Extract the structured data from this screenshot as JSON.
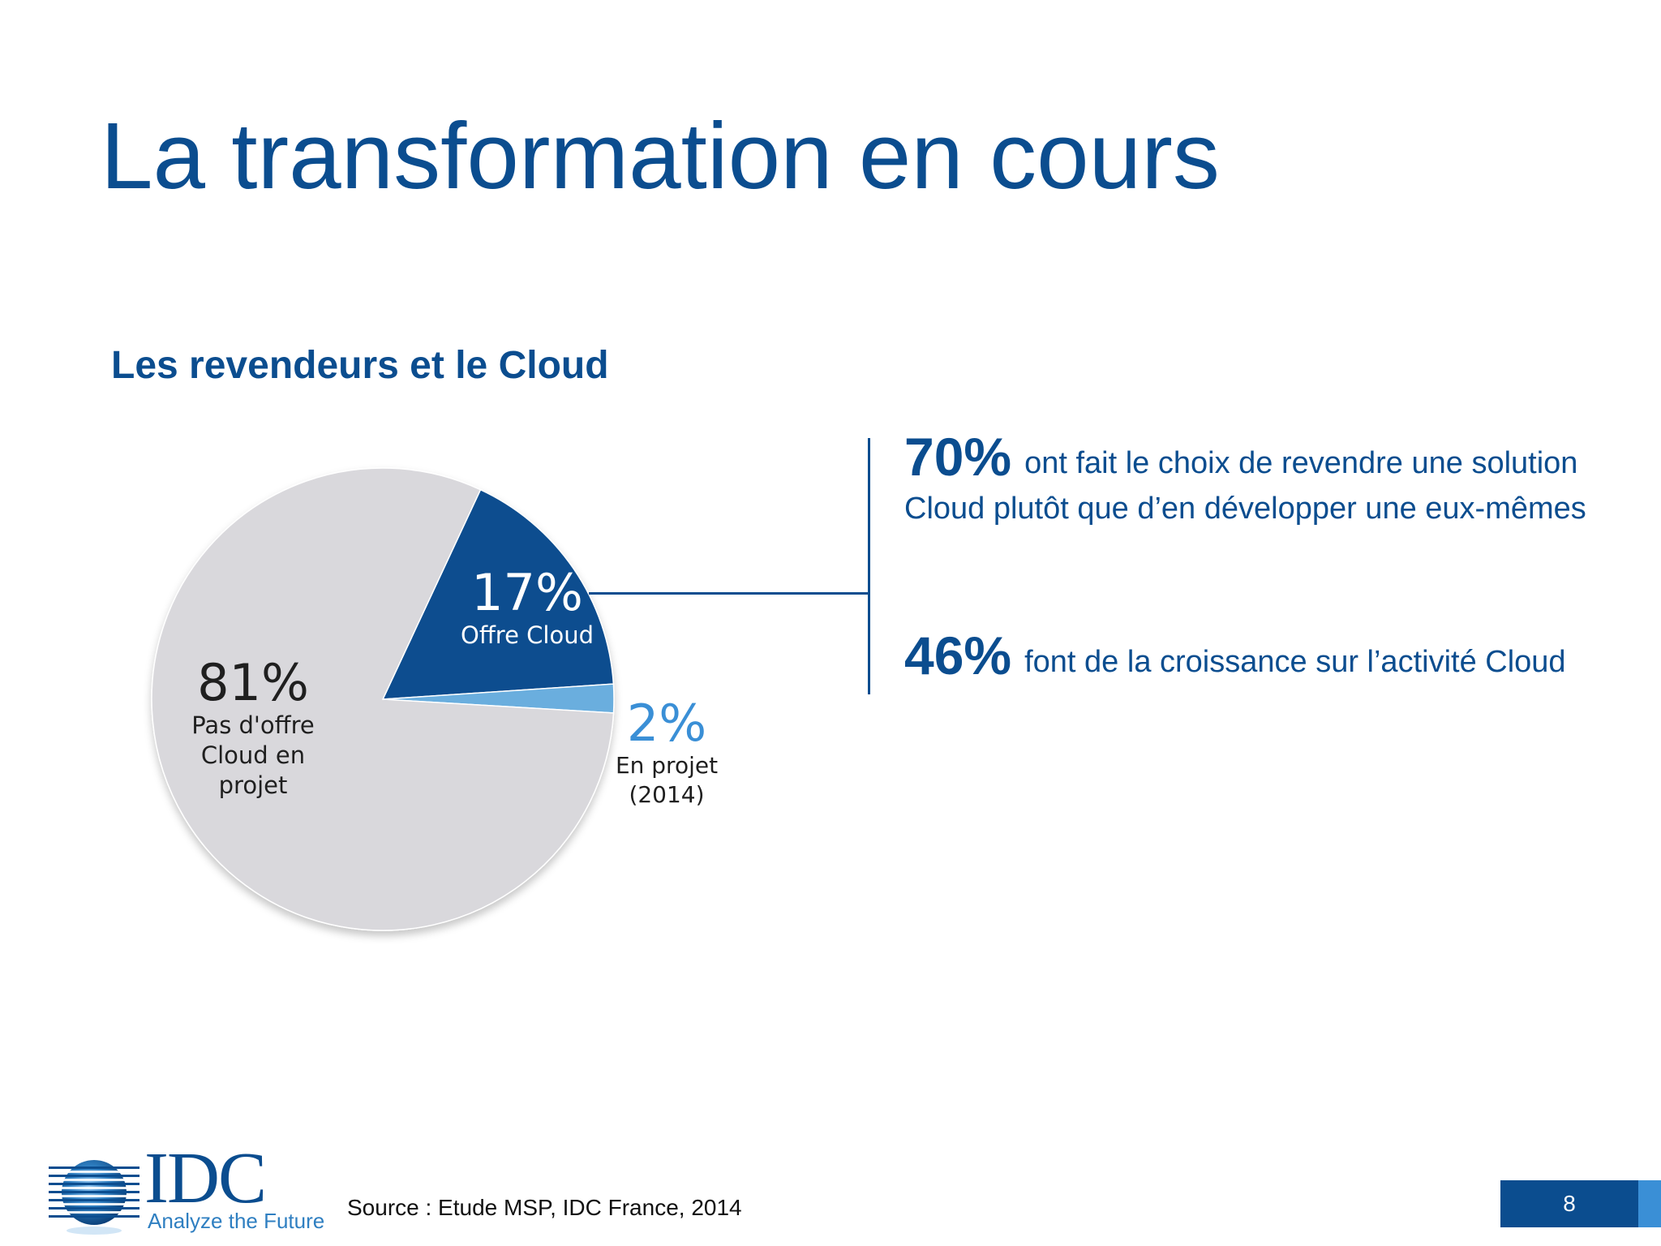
{
  "slide": {
    "title": "La transformation en cours",
    "section_title": "Les revendeurs et le Cloud",
    "source": "Source : Etude MSP, IDC France, 2014",
    "page_number": "8"
  },
  "stats": [
    {
      "value": "70%",
      "text": "ont fait le choix de revendre une solution Cloud plutôt que d’en développer une eux-mêmes"
    },
    {
      "value": "46%",
      "text": "font de la croissance sur l’activité Cloud"
    }
  ],
  "logo": {
    "name": "IDC",
    "tagline": "Analyze the Future"
  },
  "colors": {
    "brand_blue": "#0b4d8f",
    "light_blue": "#6aaede",
    "accent_blue": "#3a8fd6",
    "pie_grey": "#d9d8dc",
    "text_dark": "#1f1f1f"
  },
  "chart_data": {
    "type": "pie",
    "title": "Les revendeurs et le Cloud",
    "slices": [
      {
        "value_label": "17%",
        "value": 17,
        "label": "Offre Cloud",
        "color": "#0b4d8f"
      },
      {
        "value_label": "2%",
        "value": 2,
        "label": "En projet (2014)",
        "label_line1": "En projet",
        "label_line2": "(2014)",
        "color": "#6aaede"
      },
      {
        "value_label": "81%",
        "value": 81,
        "label": "Pas d'offre Cloud en projet",
        "color": "#d9d8dc"
      }
    ],
    "start_angle_deg": -65,
    "direction": "clockwise",
    "legend": "inline labels"
  }
}
